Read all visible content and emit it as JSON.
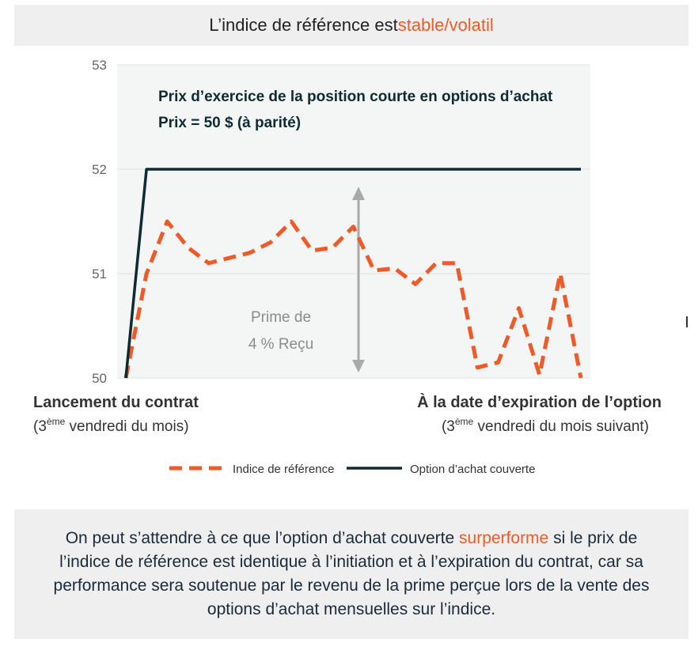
{
  "header": {
    "title_prefix": "L’indice de référence est ",
    "title_accent": "stable/volatil"
  },
  "chart_data": {
    "type": "line",
    "ylim": [
      50,
      53
    ],
    "yticks": [
      "50",
      "51",
      "52",
      "53"
    ],
    "grid": true,
    "legend_position": "bottom-center",
    "annotation_strike_line1": "Prix d’exercice de la position courte en options d’achat",
    "annotation_strike_line2": "Prix = 50 $ (à parité)",
    "annotation_premium_line1": "Prime de",
    "annotation_premium_line2": "4 % Reçu",
    "x_start_label": "Lancement du contrat",
    "x_start_sub_prefix": "(3",
    "x_start_sub_sup": "ème",
    "x_start_sub_suffix": " vendredi du mois)",
    "x_end_label": "À la date d’expiration de l’option",
    "x_end_sub_prefix": "(3",
    "x_end_sub_sup": "ème",
    "x_end_sub_suffix": " vendredi du mois suivant)",
    "x": [
      0,
      1,
      2,
      3,
      4,
      5,
      6,
      7,
      8,
      9,
      10,
      11,
      12,
      13,
      14,
      15,
      16,
      17,
      18,
      19,
      20,
      21,
      22
    ],
    "series": [
      {
        "name": "Indice de référence",
        "style": "dashed",
        "color": "#f05a28",
        "values": [
          50.0,
          51.0,
          51.5,
          51.25,
          51.1,
          51.15,
          51.2,
          51.3,
          51.5,
          51.22,
          51.25,
          51.45,
          51.03,
          51.05,
          50.9,
          51.1,
          51.1,
          50.1,
          50.15,
          50.67,
          50.03,
          51.0,
          50.0
        ]
      },
      {
        "name": "Option d’achat couverte",
        "style": "solid",
        "color": "#0e2a33",
        "values": [
          50.0,
          52.0,
          52.0,
          52.0,
          52.0,
          52.0,
          52.0,
          52.0,
          52.0,
          52.0,
          52.0,
          52.0,
          52.0,
          52.0,
          52.0,
          52.0,
          52.0,
          52.0,
          52.0,
          52.0,
          52.0,
          52.0,
          52.0
        ]
      }
    ]
  },
  "footer": {
    "text_before": "On peut s’attendre à ce que l’option d’achat couverte ",
    "text_accent": "surperforme",
    "text_after": " si le prix de l’indice de référence est identique à l’initiation et à l’expiration du contrat, car sa performance sera soutenue par le revenu de la prime perçue lors de la vente des options d’achat mensuelles sur l’indice."
  }
}
